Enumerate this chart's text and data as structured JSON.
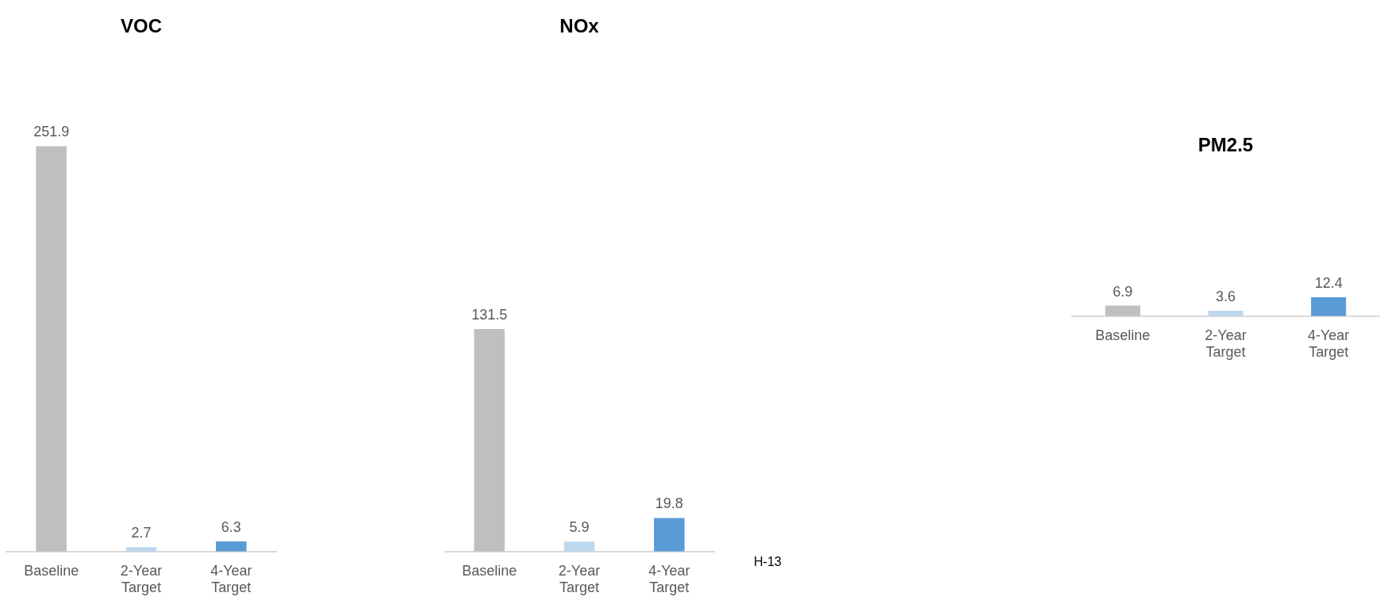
{
  "chart_data": [
    {
      "type": "bar",
      "title": "VOC",
      "categories": [
        "Baseline",
        "2-Year Target",
        "4-Year Target"
      ],
      "colors": [
        "#bfbfbf",
        "#bdd7ee",
        "#5b9bd5"
      ],
      "values": [
        251.9,
        2.7,
        6.3
      ],
      "data_labels": true
    },
    {
      "type": "bar",
      "title": "NOx",
      "categories": [
        "Baseline",
        "2-Year Target",
        "4-Year Target"
      ],
      "colors": [
        "#bfbfbf",
        "#bdd7ee",
        "#5b9bd5"
      ],
      "values": [
        131.5,
        5.9,
        19.8
      ],
      "data_labels": true,
      "annotations": [
        "H-13"
      ]
    },
    {
      "type": "bar",
      "title": "PM2.5",
      "categories": [
        "Baseline",
        "2-Year Target",
        "4-Year Target"
      ],
      "colors": [
        "#bfbfbf",
        "#bdd7ee",
        "#5b9bd5"
      ],
      "values": [
        6.9,
        3.6,
        12.4
      ],
      "data_labels": true
    }
  ]
}
